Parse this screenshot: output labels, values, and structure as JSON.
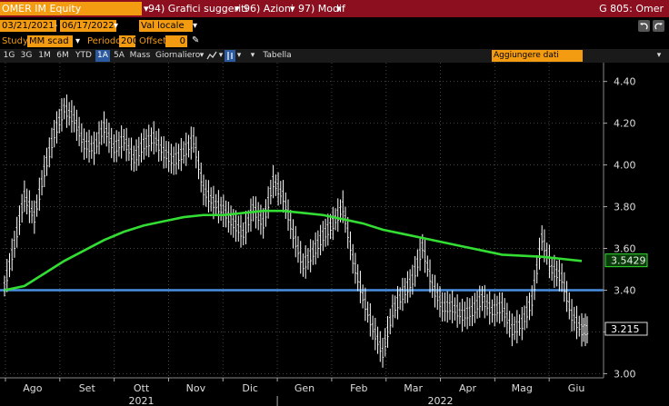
{
  "toolbar": {
    "ticker": "OMER IM Equity",
    "dropdown_glyph": "▾",
    "btn1_num": "94)",
    "btn1_label": "Grafici suggeriti",
    "btn2_num": "96)",
    "btn2_label": "Azioni",
    "btn3_num": "97)",
    "btn3_label": "Modif",
    "right_title": "G 805: Omer"
  },
  "range": {
    "start_date": "03/21/2021",
    "separator": "-",
    "end_date": "06/17/2022",
    "currency": "Val locale"
  },
  "settings": {
    "study_label": "Study",
    "study_value": "MM scad",
    "period_label": "Periodo",
    "period_value": "200",
    "offset_label": "Offset",
    "offset_value": "0",
    "pencil_glyph": "✎"
  },
  "periods": [
    "1G",
    "3G",
    "1M",
    "6M",
    "YTD",
    "1A",
    "5A",
    "Mass"
  ],
  "active_period": "1A",
  "frequency": "Giornaliero",
  "table_label": "Tabella",
  "add_data": "Aggiungere dati",
  "colors": {
    "title_bar": "#8b0f1f",
    "accent": "#f39c12",
    "ma_line": "#33dd33",
    "ref_line": "#4a90e2",
    "price": "#ffffff"
  },
  "chart_data": {
    "type": "line",
    "style": "ohlc-bars",
    "y_ticks": [
      "4.40",
      "4.20",
      "4.00",
      "3.80",
      "3.60",
      "3.40",
      "3.20",
      "3.00"
    ],
    "ylim": [
      2.98,
      4.49
    ],
    "months": [
      "Ago",
      "Set",
      "Ott",
      "Nov",
      "Dic",
      "Gen",
      "Feb",
      "Mar",
      "Apr",
      "Mag",
      "Giu"
    ],
    "years": [
      "2021",
      "2022"
    ],
    "series": [
      {
        "role": "price",
        "last": "3.215",
        "values": [
          3.42,
          3.62,
          3.85,
          3.75,
          3.97,
          4.15,
          4.27,
          4.22,
          4.1,
          4.08,
          4.18,
          4.08,
          4.12,
          4.03,
          4.1,
          4.13,
          4.06,
          4.02,
          4.06,
          4.12,
          3.88,
          3.82,
          3.78,
          3.72,
          3.67,
          3.79,
          3.72,
          3.92,
          3.85,
          3.67,
          3.52,
          3.58,
          3.66,
          3.72,
          3.8,
          3.55,
          3.37,
          3.22,
          3.1,
          3.3,
          3.38,
          3.45,
          3.61,
          3.42,
          3.32,
          3.32,
          3.28,
          3.3,
          3.36,
          3.3,
          3.32,
          3.21,
          3.24,
          3.35,
          3.65,
          3.5,
          3.46,
          3.28,
          3.21
        ]
      },
      {
        "role": "moving-average",
        "last": "3.5429",
        "values": [
          3.4,
          3.42,
          3.48,
          3.54,
          3.59,
          3.64,
          3.68,
          3.71,
          3.73,
          3.75,
          3.76,
          3.76,
          3.77,
          3.78,
          3.78,
          3.77,
          3.76,
          3.74,
          3.72,
          3.69,
          3.67,
          3.65,
          3.63,
          3.61,
          3.59,
          3.57,
          3.565,
          3.56,
          3.55,
          3.54
        ]
      },
      {
        "role": "reference",
        "values": [
          3.4
        ]
      }
    ]
  }
}
